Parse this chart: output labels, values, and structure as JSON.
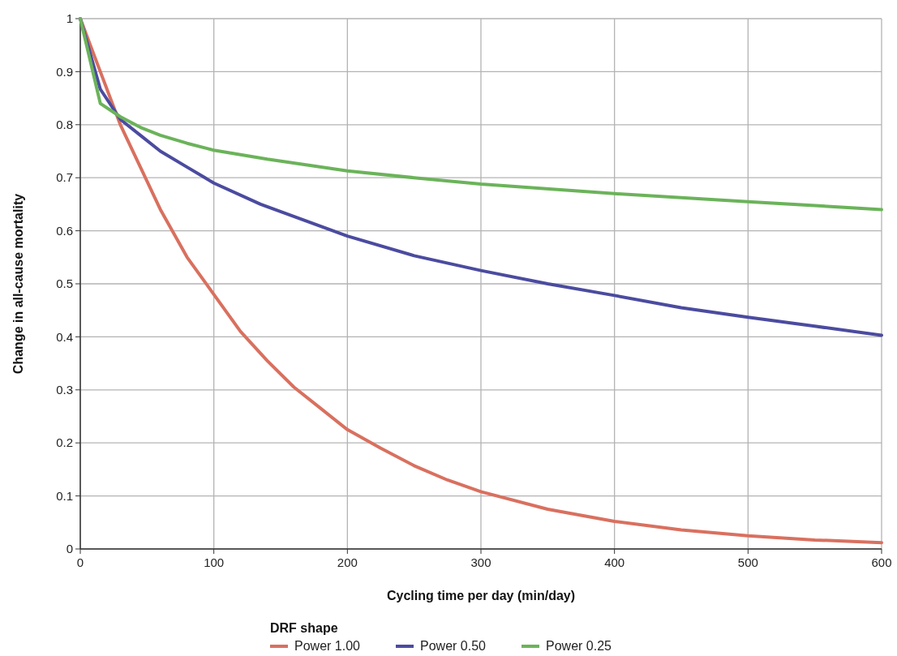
{
  "chart_data": {
    "type": "line",
    "xlabel": "Cycling time per day (min/day)",
    "ylabel": "Change in all-cause mortality",
    "legend_title": "DRF shape",
    "xlim": [
      0,
      600
    ],
    "ylim": [
      0,
      1
    ],
    "xticks": [
      0,
      100,
      200,
      300,
      400,
      500,
      600
    ],
    "yticks": [
      0,
      0.1,
      0.2,
      0.3,
      0.4,
      0.5,
      0.6,
      0.7,
      0.8,
      0.9,
      1
    ],
    "grid": true,
    "legend": "bottom",
    "marker": "none",
    "line_style": "solid",
    "series": [
      {
        "name": "Power 1.00",
        "color": "#d9705f",
        "x": [
          0,
          15,
          30,
          45,
          60,
          80,
          100,
          120,
          140,
          160,
          180,
          200,
          225,
          250,
          275,
          300,
          350,
          400,
          450,
          500,
          550,
          600
        ],
        "values": [
          1,
          0.9,
          0.8,
          0.72,
          0.64,
          0.55,
          0.48,
          0.41,
          0.355,
          0.305,
          0.265,
          0.225,
          0.19,
          0.157,
          0.13,
          0.108,
          0.075,
          0.052,
          0.036,
          0.025,
          0.017,
          0.012
        ]
      },
      {
        "name": "Power 0.50",
        "color": "#4b4ba0",
        "x": [
          0,
          15,
          30,
          45,
          60,
          80,
          100,
          135,
          200,
          250,
          300,
          350,
          400,
          450,
          500,
          550,
          600
        ],
        "values": [
          1,
          0.867,
          0.81,
          0.78,
          0.75,
          0.72,
          0.69,
          0.65,
          0.59,
          0.553,
          0.525,
          0.5,
          0.478,
          0.455,
          0.437,
          0.42,
          0.403
        ]
      },
      {
        "name": "Power 0.25",
        "color": "#6bb35a",
        "x": [
          0,
          15,
          30,
          45,
          60,
          80,
          100,
          140,
          200,
          250,
          300,
          400,
          500,
          600
        ],
        "values": [
          1,
          0.84,
          0.815,
          0.795,
          0.78,
          0.765,
          0.752,
          0.735,
          0.713,
          0.7,
          0.688,
          0.67,
          0.655,
          0.64
        ]
      }
    ]
  }
}
